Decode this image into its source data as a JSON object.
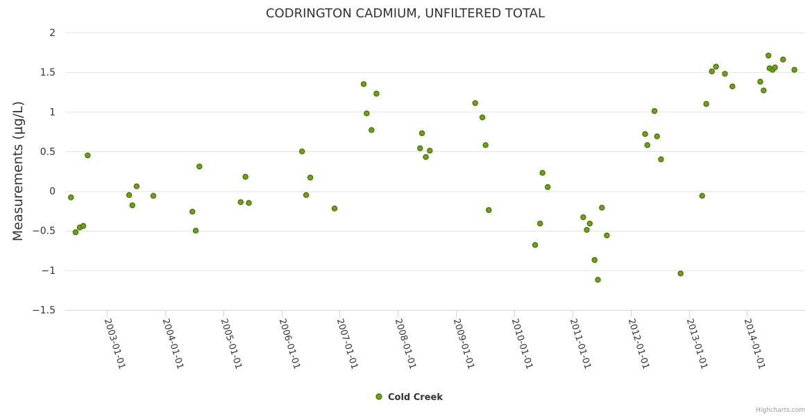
{
  "chart_data": {
    "type": "scatter",
    "title": "CODRINGTON CADMIUM, UNFILTERED TOTAL",
    "xlabel": "",
    "ylabel": "Measurements (µg/L)",
    "ylim": [
      -1.5,
      2
    ],
    "yticks": [
      2,
      1.5,
      1,
      0.5,
      0,
      -0.5,
      -1,
      -1.5
    ],
    "ytick_labels": [
      "2",
      "1.5",
      "1",
      "0.5",
      "0",
      "−0.5",
      "−1",
      "−1.5"
    ],
    "xlim": [
      "2002-04-15",
      "2014-12-31"
    ],
    "xticks": [
      "2003-01-01",
      "2004-01-01",
      "2005-01-01",
      "2006-01-01",
      "2007-01-01",
      "2008-01-01",
      "2009-01-01",
      "2010-01-01",
      "2011-01-01",
      "2012-01-01",
      "2013-01-01",
      "2014-01-01"
    ],
    "legend_position": "bottom-center",
    "series": [
      {
        "name": "Cold Creek",
        "color": "#6da50f",
        "border_color": "#3f6b00",
        "points": [
          {
            "x": "2002-05-21",
            "y": -0.08
          },
          {
            "x": "2002-06-19",
            "y": -0.52
          },
          {
            "x": "2002-07-15",
            "y": -0.46
          },
          {
            "x": "2002-08-06",
            "y": -0.44
          },
          {
            "x": "2002-09-03",
            "y": 0.45
          },
          {
            "x": "2003-05-21",
            "y": -0.05
          },
          {
            "x": "2003-06-10",
            "y": -0.18
          },
          {
            "x": "2003-07-07",
            "y": 0.06
          },
          {
            "x": "2003-10-20",
            "y": -0.06
          },
          {
            "x": "2004-06-21",
            "y": -0.26
          },
          {
            "x": "2004-07-12",
            "y": -0.5
          },
          {
            "x": "2004-08-04",
            "y": 0.31
          },
          {
            "x": "2005-04-20",
            "y": -0.14
          },
          {
            "x": "2005-05-20",
            "y": 0.18
          },
          {
            "x": "2005-06-10",
            "y": -0.15
          },
          {
            "x": "2006-05-10",
            "y": 0.5
          },
          {
            "x": "2006-06-05",
            "y": -0.05
          },
          {
            "x": "2006-07-01",
            "y": 0.17
          },
          {
            "x": "2006-11-30",
            "y": -0.22
          },
          {
            "x": "2007-06-01",
            "y": 1.35
          },
          {
            "x": "2007-06-20",
            "y": 0.98
          },
          {
            "x": "2007-07-20",
            "y": 0.77
          },
          {
            "x": "2007-08-20",
            "y": 1.23
          },
          {
            "x": "2008-05-20",
            "y": 0.54
          },
          {
            "x": "2008-06-01",
            "y": 0.73
          },
          {
            "x": "2008-06-25",
            "y": 0.43
          },
          {
            "x": "2008-07-20",
            "y": 0.51
          },
          {
            "x": "2009-05-01",
            "y": 1.11
          },
          {
            "x": "2009-06-15",
            "y": 0.93
          },
          {
            "x": "2009-07-05",
            "y": 0.58
          },
          {
            "x": "2009-07-25",
            "y": -0.24
          },
          {
            "x": "2010-05-12",
            "y": -0.68
          },
          {
            "x": "2010-06-12",
            "y": -0.41
          },
          {
            "x": "2010-06-27",
            "y": 0.23
          },
          {
            "x": "2010-07-30",
            "y": 0.05
          },
          {
            "x": "2011-03-10",
            "y": -0.33
          },
          {
            "x": "2011-04-01",
            "y": -0.49
          },
          {
            "x": "2011-04-20",
            "y": -0.41
          },
          {
            "x": "2011-05-20",
            "y": -0.87
          },
          {
            "x": "2011-06-10",
            "y": -1.12
          },
          {
            "x": "2011-07-05",
            "y": -0.21
          },
          {
            "x": "2011-08-05",
            "y": -0.56
          },
          {
            "x": "2012-04-01",
            "y": 0.72
          },
          {
            "x": "2012-04-15",
            "y": 0.58
          },
          {
            "x": "2012-05-30",
            "y": 1.01
          },
          {
            "x": "2012-06-15",
            "y": 0.69
          },
          {
            "x": "2012-07-10",
            "y": 0.4
          },
          {
            "x": "2012-11-10",
            "y": -1.04
          },
          {
            "x": "2013-03-25",
            "y": -0.06
          },
          {
            "x": "2013-04-20",
            "y": 1.1
          },
          {
            "x": "2013-05-25",
            "y": 1.51
          },
          {
            "x": "2013-06-20",
            "y": 1.57
          },
          {
            "x": "2013-08-15",
            "y": 1.48
          },
          {
            "x": "2013-10-01",
            "y": 1.32
          },
          {
            "x": "2014-03-25",
            "y": 1.38
          },
          {
            "x": "2014-04-15",
            "y": 1.27
          },
          {
            "x": "2014-05-15",
            "y": 1.71
          },
          {
            "x": "2014-05-22",
            "y": 1.55
          },
          {
            "x": "2014-06-10",
            "y": 1.53
          },
          {
            "x": "2014-06-25",
            "y": 1.56
          },
          {
            "x": "2014-08-15",
            "y": 1.66
          },
          {
            "x": "2014-10-25",
            "y": 1.53
          }
        ]
      }
    ]
  },
  "credits": "Highcharts.com"
}
